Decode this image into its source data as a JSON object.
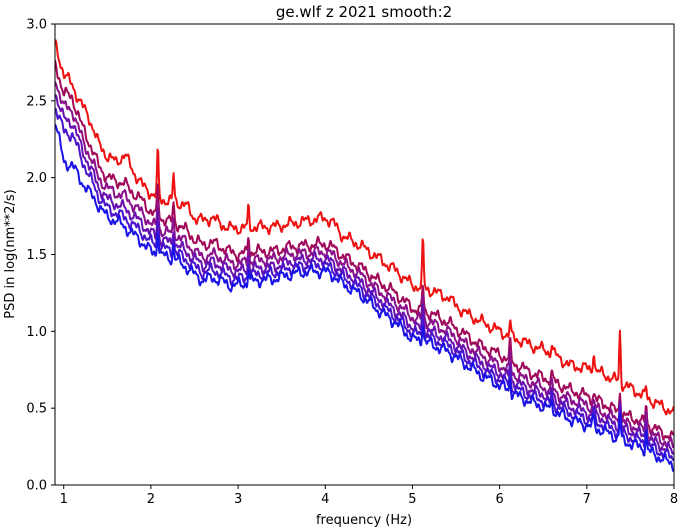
{
  "chart_data": {
    "type": "line",
    "title": "ge.wlf z 2021 smooth:2",
    "xlabel": "frequency (Hz)",
    "ylabel": "PSD in log(nm**2/s)",
    "xlim": [
      0.9,
      8
    ],
    "ylim": [
      0,
      3
    ],
    "xticks": [
      1,
      2,
      3,
      4,
      5,
      6,
      7,
      8
    ],
    "yticks": [
      0.0,
      0.5,
      1.0,
      1.5,
      2.0,
      2.5,
      3.0
    ],
    "xtick_labels": [
      "1",
      "2",
      "3",
      "4",
      "5",
      "6",
      "7",
      "8"
    ],
    "ytick_labels": [
      "0.0",
      "0.5",
      "1.0",
      "1.5",
      "2.0",
      "2.5",
      "3.0"
    ],
    "grid": false,
    "legend": "none",
    "series": [
      {
        "color": "#ee1111",
        "x": [
          0.9,
          1.0,
          1.1,
          1.2,
          1.3,
          1.4,
          1.5,
          1.6,
          1.7,
          1.8,
          1.9,
          2.0,
          2.1,
          2.2,
          2.3,
          2.4,
          2.5,
          2.6,
          2.7,
          2.8,
          2.9,
          3.0,
          3.2,
          3.4,
          3.6,
          3.8,
          4.0,
          4.1,
          4.2,
          4.4,
          4.6,
          4.8,
          5.0,
          5.2,
          5.4,
          5.6,
          5.8,
          6.0,
          6.2,
          6.4,
          6.6,
          6.8,
          7.0,
          7.2,
          7.4,
          7.6,
          7.8,
          8.0
        ],
        "y": [
          2.87,
          2.68,
          2.6,
          2.48,
          2.38,
          2.22,
          2.14,
          2.1,
          2.15,
          2.04,
          1.95,
          1.9,
          1.86,
          1.85,
          1.84,
          1.82,
          1.74,
          1.72,
          1.74,
          1.7,
          1.67,
          1.67,
          1.68,
          1.68,
          1.7,
          1.72,
          1.74,
          1.7,
          1.62,
          1.56,
          1.48,
          1.4,
          1.3,
          1.27,
          1.22,
          1.12,
          1.06,
          1.0,
          0.95,
          0.9,
          0.86,
          0.78,
          0.76,
          0.72,
          0.66,
          0.6,
          0.53,
          0.47
        ]
      },
      {
        "color": "#a0095a",
        "x": [
          0.9,
          1.0,
          1.1,
          1.2,
          1.3,
          1.4,
          1.5,
          1.6,
          1.7,
          1.8,
          1.9,
          2.0,
          2.1,
          2.2,
          2.3,
          2.4,
          2.5,
          2.6,
          2.7,
          2.8,
          2.9,
          3.0,
          3.2,
          3.4,
          3.6,
          3.8,
          4.0,
          4.1,
          4.2,
          4.4,
          4.6,
          4.8,
          5.0,
          5.2,
          5.4,
          5.6,
          5.8,
          6.0,
          6.2,
          6.4,
          6.6,
          6.8,
          7.0,
          7.2,
          7.4,
          7.6,
          7.8,
          8.0
        ],
        "y": [
          2.75,
          2.55,
          2.52,
          2.35,
          2.22,
          2.08,
          2.0,
          1.98,
          1.96,
          1.9,
          1.85,
          1.78,
          1.74,
          1.72,
          1.7,
          1.66,
          1.6,
          1.56,
          1.58,
          1.55,
          1.52,
          1.5,
          1.52,
          1.52,
          1.55,
          1.56,
          1.57,
          1.54,
          1.49,
          1.42,
          1.33,
          1.25,
          1.15,
          1.12,
          1.06,
          0.98,
          0.9,
          0.85,
          0.78,
          0.72,
          0.68,
          0.62,
          0.58,
          0.53,
          0.46,
          0.42,
          0.36,
          0.3
        ]
      },
      {
        "color": "#8a118a",
        "x": [
          0.9,
          1.0,
          1.1,
          1.2,
          1.3,
          1.4,
          1.5,
          1.6,
          1.7,
          1.8,
          1.9,
          2.0,
          2.1,
          2.2,
          2.3,
          2.4,
          2.5,
          2.6,
          2.7,
          2.8,
          2.9,
          3.0,
          3.2,
          3.4,
          3.6,
          3.8,
          4.0,
          4.1,
          4.2,
          4.4,
          4.6,
          4.8,
          5.0,
          5.2,
          5.4,
          5.6,
          5.8,
          6.0,
          6.2,
          6.4,
          6.6,
          6.8,
          7.0,
          7.2,
          7.4,
          7.6,
          7.8,
          8.0
        ],
        "y": [
          2.65,
          2.46,
          2.44,
          2.27,
          2.14,
          2.0,
          1.93,
          1.9,
          1.88,
          1.82,
          1.77,
          1.7,
          1.66,
          1.64,
          1.62,
          1.58,
          1.52,
          1.48,
          1.5,
          1.48,
          1.45,
          1.44,
          1.46,
          1.47,
          1.5,
          1.51,
          1.52,
          1.49,
          1.44,
          1.37,
          1.27,
          1.19,
          1.09,
          1.06,
          1.0,
          0.92,
          0.84,
          0.78,
          0.71,
          0.66,
          0.61,
          0.56,
          0.52,
          0.47,
          0.41,
          0.37,
          0.31,
          0.25
        ]
      },
      {
        "color": "#6a12b0",
        "x": [
          0.9,
          1.0,
          1.1,
          1.2,
          1.3,
          1.4,
          1.5,
          1.6,
          1.7,
          1.8,
          1.9,
          2.0,
          2.1,
          2.2,
          2.3,
          2.4,
          2.5,
          2.6,
          2.7,
          2.8,
          2.9,
          3.0,
          3.2,
          3.4,
          3.6,
          3.8,
          4.0,
          4.1,
          4.2,
          4.4,
          4.6,
          4.8,
          5.0,
          5.2,
          5.4,
          5.6,
          5.8,
          6.0,
          6.2,
          6.4,
          6.6,
          6.8,
          7.0,
          7.2,
          7.4,
          7.6,
          7.8,
          8.0
        ],
        "y": [
          2.56,
          2.38,
          2.36,
          2.2,
          2.07,
          1.94,
          1.86,
          1.83,
          1.8,
          1.75,
          1.7,
          1.64,
          1.6,
          1.58,
          1.56,
          1.52,
          1.47,
          1.43,
          1.45,
          1.43,
          1.4,
          1.39,
          1.41,
          1.42,
          1.45,
          1.47,
          1.47,
          1.44,
          1.39,
          1.32,
          1.22,
          1.14,
          1.03,
          1.0,
          0.95,
          0.87,
          0.79,
          0.73,
          0.66,
          0.61,
          0.57,
          0.51,
          0.47,
          0.43,
          0.37,
          0.33,
          0.27,
          0.21
        ]
      },
      {
        "color": "#4a14cc",
        "x": [
          0.9,
          1.0,
          1.1,
          1.2,
          1.3,
          1.4,
          1.5,
          1.6,
          1.7,
          1.8,
          1.9,
          2.0,
          2.1,
          2.2,
          2.3,
          2.4,
          2.5,
          2.6,
          2.7,
          2.8,
          2.9,
          3.0,
          3.2,
          3.4,
          3.6,
          3.8,
          4.0,
          4.1,
          4.2,
          4.4,
          4.6,
          4.8,
          5.0,
          5.2,
          5.4,
          5.6,
          5.8,
          6.0,
          6.2,
          6.4,
          6.6,
          6.8,
          7.0,
          7.2,
          7.4,
          7.6,
          7.8,
          8.0
        ],
        "y": [
          2.47,
          2.3,
          2.28,
          2.13,
          2.0,
          1.88,
          1.8,
          1.77,
          1.74,
          1.69,
          1.64,
          1.58,
          1.55,
          1.53,
          1.51,
          1.47,
          1.42,
          1.38,
          1.4,
          1.38,
          1.35,
          1.34,
          1.37,
          1.38,
          1.41,
          1.43,
          1.43,
          1.4,
          1.35,
          1.28,
          1.18,
          1.1,
          0.99,
          0.96,
          0.91,
          0.83,
          0.75,
          0.69,
          0.62,
          0.57,
          0.53,
          0.47,
          0.43,
          0.39,
          0.33,
          0.29,
          0.23,
          0.17
        ]
      },
      {
        "color": "#1a12e6",
        "x": [
          0.9,
          1.0,
          1.1,
          1.2,
          1.3,
          1.4,
          1.5,
          1.6,
          1.7,
          1.8,
          1.9,
          2.0,
          2.1,
          2.2,
          2.3,
          2.4,
          2.5,
          2.6,
          2.7,
          2.8,
          2.9,
          3.0,
          3.2,
          3.4,
          3.6,
          3.8,
          4.0,
          4.1,
          4.2,
          4.4,
          4.6,
          4.8,
          5.0,
          5.2,
          5.4,
          5.6,
          5.8,
          6.0,
          6.2,
          6.4,
          6.6,
          6.8,
          7.0,
          7.2,
          7.4,
          7.6,
          7.8,
          8.0
        ],
        "y": [
          2.38,
          2.1,
          2.08,
          1.98,
          1.9,
          1.82,
          1.74,
          1.72,
          1.68,
          1.63,
          1.58,
          1.52,
          1.5,
          1.48,
          1.46,
          1.42,
          1.37,
          1.33,
          1.35,
          1.33,
          1.3,
          1.3,
          1.33,
          1.34,
          1.37,
          1.39,
          1.39,
          1.36,
          1.31,
          1.24,
          1.14,
          1.06,
          0.95,
          0.92,
          0.87,
          0.79,
          0.71,
          0.65,
          0.58,
          0.53,
          0.49,
          0.43,
          0.39,
          0.35,
          0.29,
          0.25,
          0.19,
          0.13
        ]
      }
    ],
    "peaks": [
      {
        "x": 2.08,
        "heights": [
          2.17,
          1.95,
          1.87,
          1.8,
          1.74,
          1.68
        ]
      },
      {
        "x": 2.26,
        "heights": [
          2.02,
          1.82,
          1.74,
          1.68,
          1.62,
          1.56
        ]
      },
      {
        "x": 3.12,
        "heights": [
          1.8,
          1.62,
          1.56,
          1.5,
          1.45,
          1.4
        ]
      },
      {
        "x": 5.12,
        "heights": [
          1.59,
          1.3,
          1.24,
          1.18,
          1.13,
          1.08
        ]
      },
      {
        "x": 5.41,
        "heights": [
          1.23,
          1.02,
          0.96,
          0.9,
          0.85,
          0.8
        ]
      },
      {
        "x": 6.12,
        "heights": [
          1.05,
          0.92,
          0.86,
          0.8,
          0.75,
          0.7
        ]
      },
      {
        "x": 6.6,
        "heights": [
          0.92,
          0.72,
          0.67,
          0.62,
          0.58,
          0.54
        ]
      },
      {
        "x": 7.08,
        "heights": [
          0.89,
          0.6,
          0.56,
          0.52,
          0.48,
          0.44
        ]
      },
      {
        "x": 7.38,
        "heights": [
          1.0,
          0.62,
          0.58,
          0.54,
          0.5,
          0.46
        ]
      },
      {
        "x": 7.68,
        "heights": [
          0.62,
          0.52,
          0.48,
          0.44,
          0.4,
          0.36
        ]
      }
    ]
  }
}
